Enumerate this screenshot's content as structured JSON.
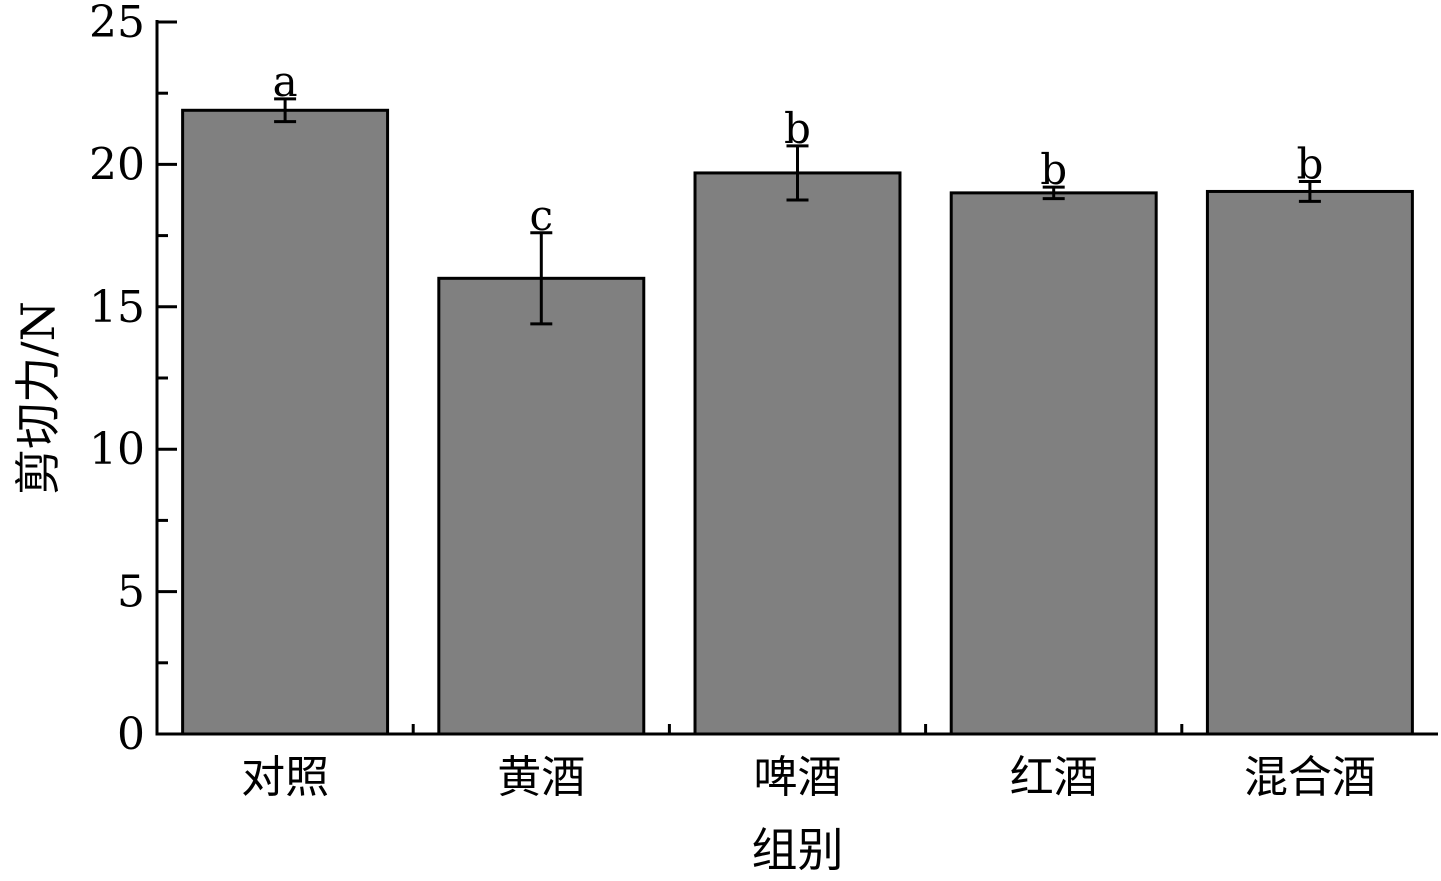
{
  "chart_data": {
    "type": "bar",
    "categories": [
      "对照",
      "黄酒",
      "啤酒",
      "红酒",
      "混合酒"
    ],
    "values": [
      21.9,
      16.0,
      19.7,
      19.0,
      19.05
    ],
    "errors": [
      0.4,
      1.6,
      0.95,
      0.2,
      0.35
    ],
    "significance_letters": [
      "a",
      "c",
      "b",
      "b",
      "b"
    ],
    "xlabel": "组别",
    "ylabel": "剪切力/N",
    "ylim": [
      0,
      25
    ],
    "yticks": [
      0,
      5,
      10,
      15,
      20,
      25
    ],
    "yminor_step": 2.5,
    "bar_color": "#808080",
    "bar_edge_color": "#000000",
    "grid": false,
    "legend": "none"
  }
}
